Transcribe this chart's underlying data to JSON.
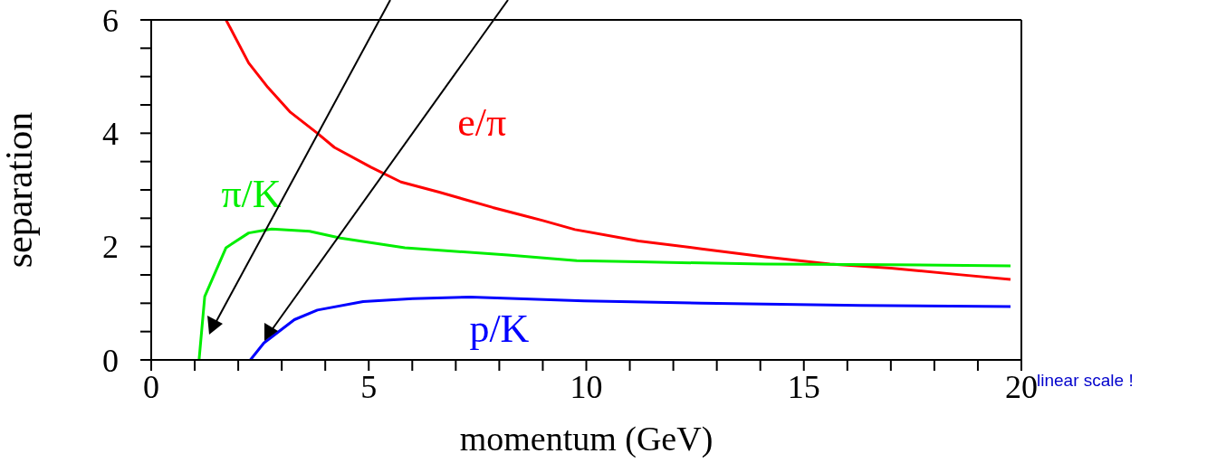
{
  "chart_data": {
    "type": "line",
    "xlabel": "momentum (GeV)",
    "ylabel": "separation",
    "xlim": [
      0,
      20
    ],
    "ylim": [
      0,
      6
    ],
    "xticks": [
      0,
      {
        "value": 1,
        "label": null
      },
      {
        "value": 2,
        "label": null
      },
      {
        "value": 3,
        "label": null
      },
      {
        "value": 4,
        "label": null
      },
      5,
      {
        "value": 6,
        "label": null
      },
      {
        "value": 7,
        "label": null
      },
      {
        "value": 8,
        "label": null
      },
      {
        "value": 9,
        "label": null
      },
      10,
      {
        "value": 11,
        "label": null
      },
      {
        "value": 12,
        "label": null
      },
      {
        "value": 13,
        "label": null
      },
      {
        "value": 14,
        "label": null
      },
      15,
      {
        "value": 16,
        "label": null
      },
      {
        "value": 17,
        "label": null
      },
      {
        "value": 18,
        "label": null
      },
      {
        "value": 19,
        "label": null
      },
      20
    ],
    "yticks": [
      0,
      {
        "value": 0.5,
        "label": null
      },
      {
        "value": 1,
        "label": null
      },
      {
        "value": 1.5,
        "label": null
      },
      2,
      {
        "value": 2.5,
        "label": null
      },
      {
        "value": 3,
        "label": null
      },
      {
        "value": 3.5,
        "label": null
      },
      4,
      {
        "value": 4.5,
        "label": null
      },
      {
        "value": 5,
        "label": null
      },
      {
        "value": 5.5,
        "label": null
      },
      6
    ],
    "grid": false,
    "legend": false,
    "marker": "none",
    "line_style": "solid",
    "series": [
      {
        "name": "e/π",
        "color": "#ff0000",
        "x": [
          1.72,
          2.24,
          2.68,
          3.2,
          3.82,
          4.21,
          5.05,
          5.74,
          6.62,
          7.85,
          8.55,
          9.0,
          9.74,
          11.2,
          12.65,
          14.1,
          15.6,
          17.0,
          18.5,
          19.75
        ],
        "values": [
          6.0,
          5.24,
          4.81,
          4.37,
          4.0,
          3.75,
          3.4,
          3.14,
          2.96,
          2.69,
          2.55,
          2.46,
          2.3,
          2.1,
          1.96,
          1.82,
          1.69,
          1.62,
          1.51,
          1.42
        ]
      },
      {
        "name": "π/K",
        "color": "#00ee00",
        "x": [
          1.1,
          1.23,
          1.72,
          2.24,
          2.77,
          3.64,
          4.35,
          5.83,
          8.2,
          9.78,
          11.2,
          14.1,
          17.0,
          19.75
        ],
        "values": [
          0,
          1.12,
          1.98,
          2.24,
          2.31,
          2.27,
          2.15,
          1.98,
          1.85,
          1.75,
          1.73,
          1.69,
          1.68,
          1.66
        ]
      },
      {
        "name": "p/K",
        "color": "#0000ff",
        "x": [
          2.28,
          2.59,
          3.29,
          3.82,
          4.87,
          6.01,
          7.33,
          9.95,
          12.65,
          16.3,
          19.75
        ],
        "values": [
          0,
          0.3,
          0.71,
          0.88,
          1.03,
          1.08,
          1.11,
          1.04,
          1.0,
          0.96,
          0.94
        ]
      }
    ],
    "annotations": [
      "linear scale !"
    ]
  }
}
